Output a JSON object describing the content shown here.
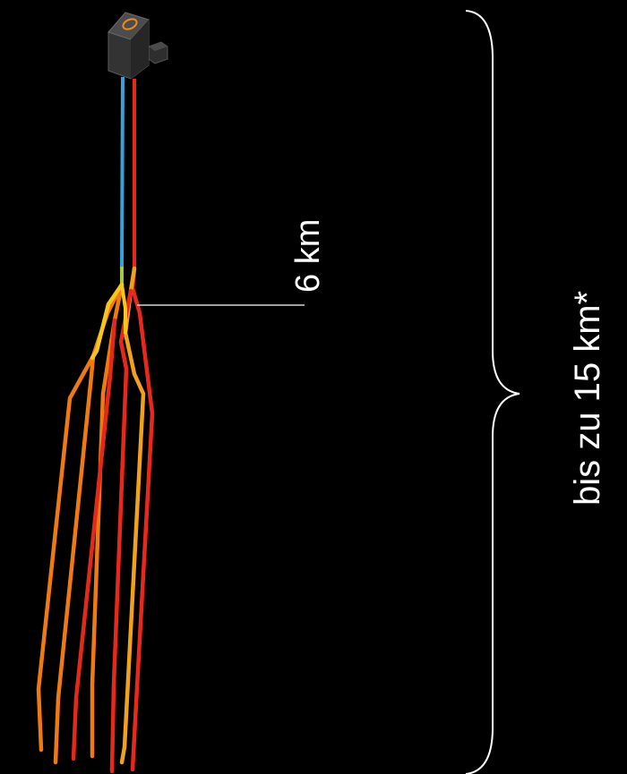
{
  "labels": {
    "depth_label": "6 km",
    "range_label": "bis zu 15 km*"
  },
  "colors": {
    "background": "#000000",
    "cold_pipe": "#3aa0d8",
    "hot_pipe": "#e8281a",
    "branch_yellow": "#f2c21b",
    "branch_orange": "#f07a12",
    "branch_red": "#e32a1a",
    "plant_body": "#3a3a3a",
    "plant_ring": "#f08a1a",
    "annotation_line": "#ffffff"
  },
  "icons": {
    "plant": "geothermal-plant-icon"
  }
}
